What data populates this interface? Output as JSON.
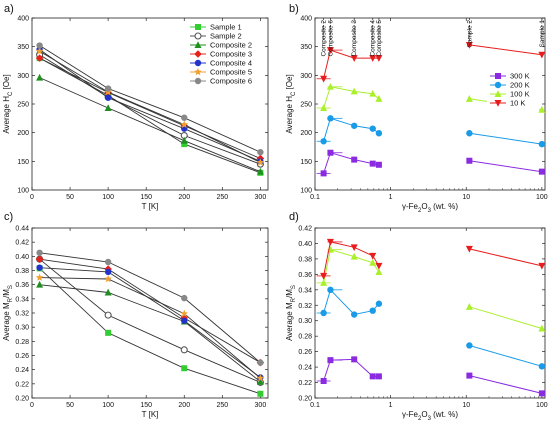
{
  "figure": {
    "panels": [
      "a)",
      "b)",
      "c)",
      "d)"
    ]
  },
  "chart_data": [
    {
      "panel": "a)",
      "type": "line",
      "xlabel": "T [K]",
      "ylabel": "Average H_C [Oe]",
      "xlim": [
        0,
        310
      ],
      "ylim": [
        100,
        400
      ],
      "xticks": [
        "0",
        "50",
        "100",
        "150",
        "200",
        "250",
        "300"
      ],
      "yticks": [
        "100",
        "150",
        "200",
        "250",
        "300",
        "350",
        "400"
      ],
      "x": [
        10,
        100,
        200,
        300
      ],
      "legend_position": "top-right",
      "series": [
        {
          "name": "Sample 1",
          "color": "#33cc33",
          "marker": "square",
          "values": [
            330,
            265,
            180,
            130
          ]
        },
        {
          "name": "Sample 2",
          "color": "#555555",
          "marker": "circle-open",
          "values": [
            336,
            262,
            195,
            145
          ]
        },
        {
          "name": "Composite 2",
          "color": "#1f8f1f",
          "marker": "triangle",
          "values": [
            296,
            243,
            186,
            132
          ]
        },
        {
          "name": "Composite 3",
          "color": "#e8201c",
          "marker": "diamond",
          "values": [
            330,
            270,
            212,
            155
          ]
        },
        {
          "name": "Composite 4",
          "color": "#2233cc",
          "marker": "circle",
          "values": [
            345,
            261,
            207,
            150
          ]
        },
        {
          "name": "Composite 5",
          "color": "#f0a030",
          "marker": "star",
          "values": [
            342,
            271,
            214,
            148
          ]
        },
        {
          "name": "Composite 6",
          "color": "#888888",
          "marker": "circle",
          "values": [
            352,
            277,
            226,
            166
          ]
        }
      ]
    },
    {
      "panel": "b)",
      "type": "scatter",
      "xlabel": "γ-Fe2O3 (wt. %)",
      "ylabel": "Average H_C [Oe]",
      "xscale": "log",
      "xlim": [
        0.1,
        110
      ],
      "ylim": [
        100,
        400
      ],
      "xticks": [
        "0.1",
        "1",
        "10",
        "100"
      ],
      "yticks": [
        "100",
        "150",
        "200",
        "250",
        "300",
        "350",
        "400"
      ],
      "top_labels": [
        {
          "text": "Composite 2",
          "x": 0.13
        },
        {
          "text": "Composite 6",
          "x": 0.16
        },
        {
          "text": "Composite 3",
          "x": 0.33
        },
        {
          "text": "Composite 4",
          "x": 0.58
        },
        {
          "text": "Composite 5",
          "x": 0.7
        },
        {
          "text": "Sample 2",
          "x": 11
        },
        {
          "text": "Sample 1",
          "x": 100
        }
      ],
      "legend_position": "center-right",
      "x": [
        0.13,
        0.16,
        0.33,
        0.58,
        0.7,
        11,
        100
      ],
      "series": [
        {
          "name": "300 K",
          "color": "#8a2be2",
          "marker": "square",
          "values": [
            129,
            165,
            153,
            146,
            144,
            151,
            132
          ]
        },
        {
          "name": "200 K",
          "color": "#1a9be8",
          "marker": "circle",
          "values": [
            185,
            225,
            212,
            207,
            199,
            199,
            180
          ]
        },
        {
          "name": "100 K",
          "color": "#aaf02a",
          "marker": "triangle",
          "values": [
            243,
            280,
            272,
            268,
            259,
            259,
            240
          ]
        },
        {
          "name": "10 K",
          "color": "#e81c1c",
          "marker": "triangle-down",
          "values": [
            294,
            344,
            330,
            330,
            330,
            353,
            336
          ]
        }
      ]
    },
    {
      "panel": "c)",
      "type": "line",
      "xlabel": "T [K]",
      "ylabel": "Average M_R/M_S",
      "xlim": [
        0,
        310
      ],
      "ylim": [
        0.2,
        0.44
      ],
      "xticks": [
        "0",
        "50",
        "100",
        "150",
        "200",
        "250",
        "300"
      ],
      "yticks": [
        "0.20",
        "0.22",
        "0.24",
        "0.26",
        "0.28",
        "0.30",
        "0.32",
        "0.34",
        "0.36",
        "0.38",
        "0.40",
        "0.42",
        "0.44"
      ],
      "x": [
        10,
        100,
        200,
        300
      ],
      "series": [
        {
          "name": "Sample 1",
          "color": "#33cc33",
          "marker": "square",
          "values": [
            0.383,
            0.292,
            0.242,
            0.206
          ]
        },
        {
          "name": "Sample 2",
          "color": "#555555",
          "marker": "circle-open",
          "values": [
            0.396,
            0.317,
            0.268,
            0.222
          ]
        },
        {
          "name": "Composite 2",
          "color": "#1f8f1f",
          "marker": "triangle",
          "values": [
            0.36,
            0.349,
            0.308,
            0.223
          ]
        },
        {
          "name": "Composite 3",
          "color": "#e8201c",
          "marker": "diamond",
          "values": [
            0.396,
            0.382,
            0.313,
            0.25
          ]
        },
        {
          "name": "Composite 4",
          "color": "#2233cc",
          "marker": "circle",
          "values": [
            0.384,
            0.378,
            0.309,
            0.229
          ]
        },
        {
          "name": "Composite 5",
          "color": "#f0a030",
          "marker": "star",
          "values": [
            0.37,
            0.368,
            0.319,
            0.228
          ]
        },
        {
          "name": "Composite 6",
          "color": "#888888",
          "marker": "circle",
          "values": [
            0.405,
            0.392,
            0.341,
            0.25
          ]
        }
      ]
    },
    {
      "panel": "d)",
      "type": "scatter",
      "xlabel": "γ-Fe2O3 (wt. %)",
      "ylabel": "Average M_R/M_S",
      "xscale": "log",
      "xlim": [
        0.1,
        110
      ],
      "ylim": [
        0.2,
        0.42
      ],
      "xticks": [
        "0.1",
        "1",
        "10",
        "100"
      ],
      "yticks": [
        "0.20",
        "0.22",
        "0.24",
        "0.26",
        "0.28",
        "0.30",
        "0.32",
        "0.34",
        "0.36",
        "0.38",
        "0.40",
        "0.42"
      ],
      "x": [
        0.13,
        0.16,
        0.33,
        0.58,
        0.7,
        11,
        100
      ],
      "series": [
        {
          "name": "300 K",
          "color": "#8a2be2",
          "marker": "square",
          "values": [
            0.222,
            0.249,
            0.25,
            0.228,
            0.228,
            0.229,
            0.206
          ]
        },
        {
          "name": "200 K",
          "color": "#1a9be8",
          "marker": "circle",
          "values": [
            0.31,
            0.34,
            0.308,
            0.313,
            0.322,
            0.268,
            0.241
          ]
        },
        {
          "name": "100 K",
          "color": "#aaf02a",
          "marker": "triangle",
          "values": [
            0.349,
            0.392,
            0.383,
            0.375,
            0.363,
            0.318,
            0.29
          ]
        },
        {
          "name": "10 K",
          "color": "#e81c1c",
          "marker": "triangle-down",
          "values": [
            0.358,
            0.402,
            0.395,
            0.384,
            0.371,
            0.393,
            0.371
          ]
        }
      ]
    }
  ]
}
